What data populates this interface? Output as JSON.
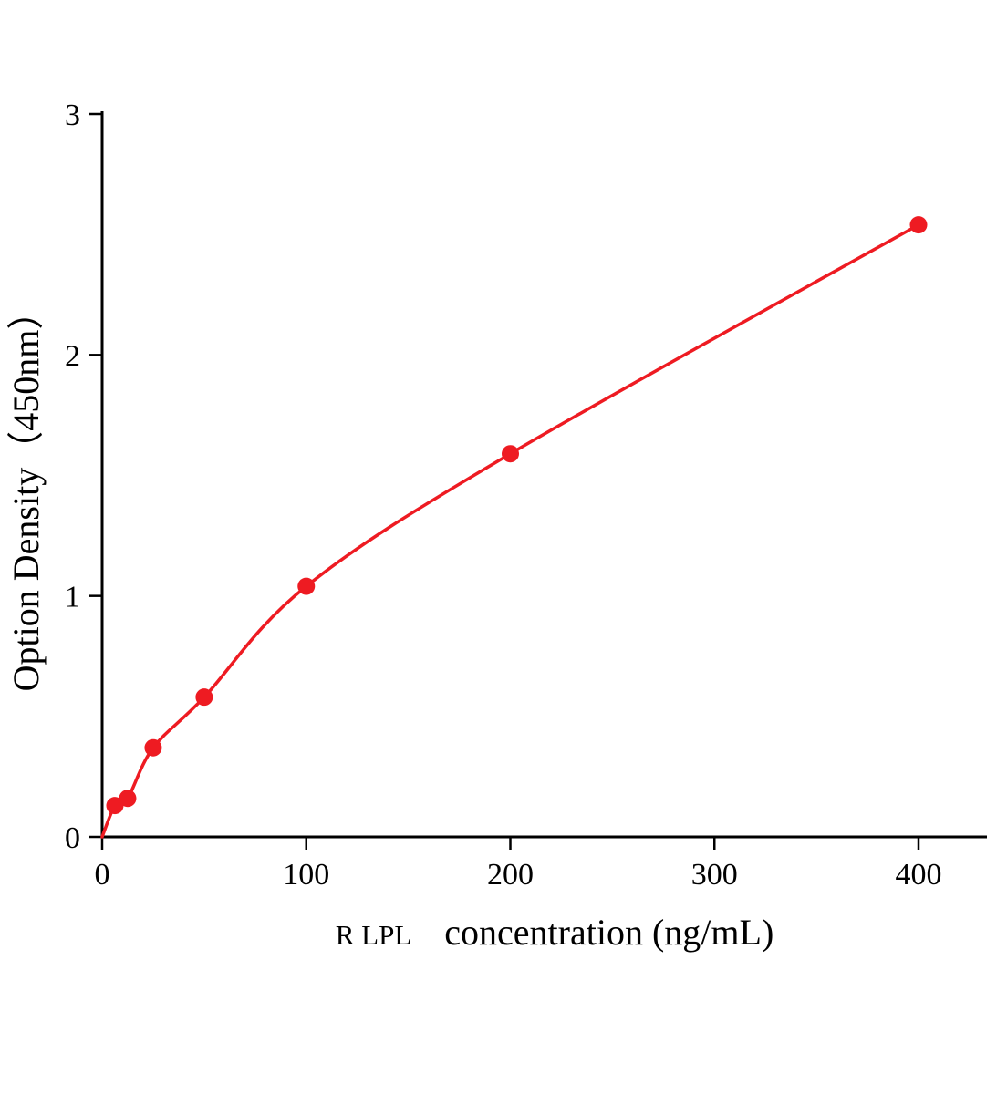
{
  "chart_data": {
    "type": "line",
    "title": "",
    "x": [
      6.25,
      12.5,
      25,
      50,
      100,
      200,
      400
    ],
    "y": [
      0.13,
      0.16,
      0.37,
      0.58,
      1.04,
      1.59,
      2.54
    ],
    "curve_start": {
      "x": 0,
      "y": 0
    },
    "x_ticks": [
      "0",
      "100",
      "200",
      "300",
      "400"
    ],
    "x_tick_values": [
      0,
      100,
      200,
      300,
      400
    ],
    "y_ticks": [
      "0",
      "1",
      "2",
      "3"
    ],
    "y_tick_values": [
      0,
      1,
      2,
      3
    ],
    "xlim": [
      0,
      433
    ],
    "ylim": [
      0,
      3
    ],
    "xlabel_prefix": "R LPL",
    "xlabel": "concentration (ng/mL)",
    "ylabel": "Option Density（450nm）",
    "legend_position": "none",
    "grid": false,
    "accent_color": "#ee1b22",
    "axis_color": "#000000"
  }
}
